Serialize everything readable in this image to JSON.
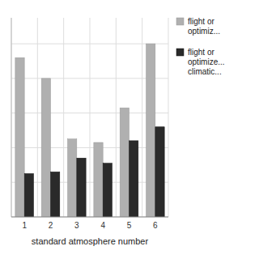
{
  "chart_data": {
    "type": "bar",
    "x_label": "standard atmosphere number",
    "categories": [
      "1",
      "2",
      "3",
      "4",
      "5",
      "6"
    ],
    "series": [
      {
        "name": "flight or\noptimiz...",
        "color": "#b0b0b0",
        "values": [
          0.92,
          0.8,
          0.45,
          0.43,
          0.63,
          1.0
        ]
      },
      {
        "name": "flight or\noptimize...\nclimatic...",
        "color": "#2a2a2a",
        "values": [
          0.25,
          0.26,
          0.34,
          0.31,
          0.44,
          0.52
        ]
      }
    ],
    "ylim": [
      0,
      1.15
    ],
    "yticks": [
      0,
      0.2,
      0.4,
      0.6,
      0.8,
      1.0
    ],
    "grid": true,
    "legend": "right",
    "tick_labels": "x"
  }
}
